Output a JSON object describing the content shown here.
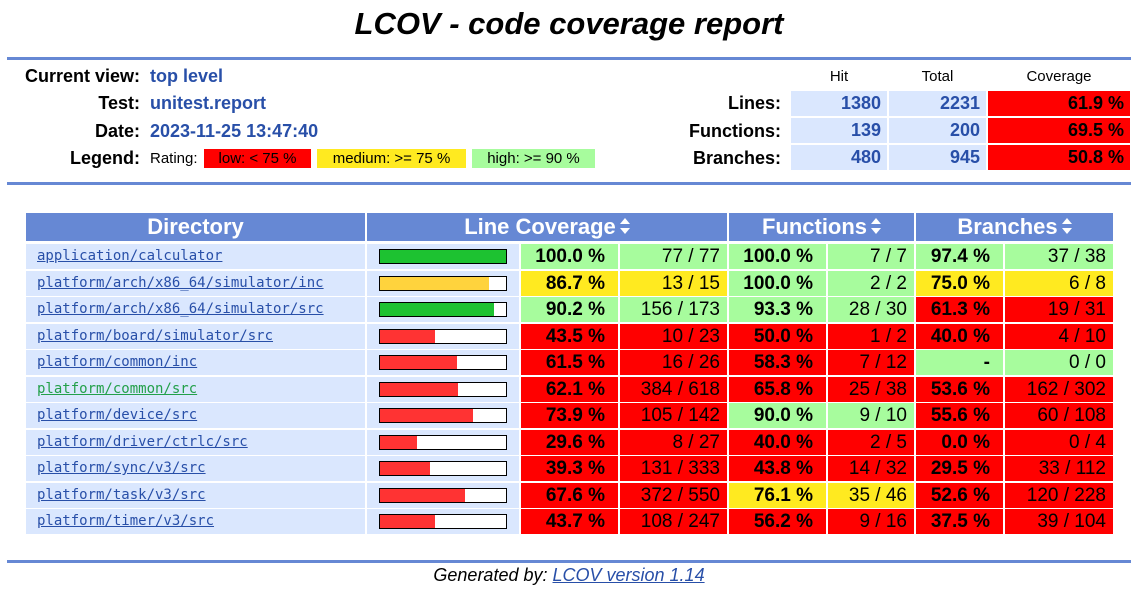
{
  "title": "LCOV - code coverage report",
  "info": {
    "current_view_label": "Current view:",
    "current_view": "top level",
    "test_label": "Test:",
    "test": "unitest.report",
    "date_label": "Date:",
    "date": "2023-11-25 13:47:40",
    "legend_label": "Legend:",
    "legend_rating": "Rating:",
    "legend_low": "low: < 75 %",
    "legend_medium": "medium: >= 75 %",
    "legend_high": "high: >= 90 %"
  },
  "summary": {
    "col_hit": "Hit",
    "col_total": "Total",
    "col_coverage": "Coverage",
    "rows": [
      {
        "label": "Lines:",
        "hit": "1380",
        "total": "2231",
        "coverage": "61.9 %"
      },
      {
        "label": "Functions:",
        "hit": "139",
        "total": "200",
        "coverage": "69.5 %"
      },
      {
        "label": "Branches:",
        "hit": "480",
        "total": "945",
        "coverage": "50.8 %"
      }
    ]
  },
  "table": {
    "headers": {
      "directory": "Directory",
      "line": "Line Coverage",
      "functions": "Functions",
      "branches": "Branches"
    },
    "rows": [
      {
        "dir": "application/calculator",
        "lp": "100.0 %",
        "ln": "77 / 77",
        "fp": "100.0 %",
        "fn": "7 / 7",
        "bp": "97.4 %",
        "bn": "37 / 38",
        "lpv": 100.0,
        "lr": "hi",
        "fr": "hi",
        "br": "hi"
      },
      {
        "dir": "platform/arch/x86_64/simulator/inc",
        "lp": "86.7 %",
        "ln": "13 / 15",
        "fp": "100.0 %",
        "fn": "2 / 2",
        "bp": "75.0 %",
        "bn": "6 / 8",
        "lpv": 86.7,
        "lr": "med",
        "fr": "hi",
        "br": "med"
      },
      {
        "dir": "platform/arch/x86_64/simulator/src",
        "lp": "90.2 %",
        "ln": "156 / 173",
        "fp": "93.3 %",
        "fn": "28 / 30",
        "bp": "61.3 %",
        "bn": "19 / 31",
        "lpv": 90.2,
        "lr": "hi",
        "fr": "hi",
        "br": "lo"
      },
      {
        "dir": "platform/board/simulator/src",
        "lp": "43.5 %",
        "ln": "10 / 23",
        "fp": "50.0 %",
        "fn": "1 / 2",
        "bp": "40.0 %",
        "bn": "4 / 10",
        "lpv": 43.5,
        "lr": "lo",
        "fr": "lo",
        "br": "lo"
      },
      {
        "dir": "platform/common/inc",
        "lp": "61.5 %",
        "ln": "16 / 26",
        "fp": "58.3 %",
        "fn": "7 / 12",
        "bp": "-",
        "bn": "0 / 0",
        "lpv": 61.5,
        "lr": "lo",
        "fr": "lo",
        "br": "hi"
      },
      {
        "dir": "platform/common/src",
        "lp": "62.1 %",
        "ln": "384 / 618",
        "fp": "65.8 %",
        "fn": "25 / 38",
        "bp": "53.6 %",
        "bn": "162 / 302",
        "lpv": 62.1,
        "lr": "lo",
        "fr": "lo",
        "br": "lo",
        "visited": true
      },
      {
        "dir": "platform/device/src",
        "lp": "73.9 %",
        "ln": "105 / 142",
        "fp": "90.0 %",
        "fn": "9 / 10",
        "bp": "55.6 %",
        "bn": "60 / 108",
        "lpv": 73.9,
        "lr": "lo",
        "fr": "hi",
        "br": "lo"
      },
      {
        "dir": "platform/driver/ctrlc/src",
        "lp": "29.6 %",
        "ln": "8 / 27",
        "fp": "40.0 %",
        "fn": "2 / 5",
        "bp": "0.0 %",
        "bn": "0 / 4",
        "lpv": 29.6,
        "lr": "lo",
        "fr": "lo",
        "br": "lo"
      },
      {
        "dir": "platform/sync/v3/src",
        "lp": "39.3 %",
        "ln": "131 / 333",
        "fp": "43.8 %",
        "fn": "14 / 32",
        "bp": "29.5 %",
        "bn": "33 / 112",
        "lpv": 39.3,
        "lr": "lo",
        "fr": "lo",
        "br": "lo"
      },
      {
        "dir": "platform/task/v3/src",
        "lp": "67.6 %",
        "ln": "372 / 550",
        "fp": "76.1 %",
        "fn": "35 / 46",
        "bp": "52.6 %",
        "bn": "120 / 228",
        "lpv": 67.6,
        "lr": "lo",
        "fr": "med",
        "br": "lo"
      },
      {
        "dir": "platform/timer/v3/src",
        "lp": "43.7 %",
        "ln": "108 / 247",
        "fp": "56.2 %",
        "fn": "9 / 16",
        "bp": "37.5 %",
        "bn": "39 / 104",
        "lpv": 43.7,
        "lr": "lo",
        "fr": "lo",
        "br": "lo"
      }
    ]
  },
  "colors": {
    "high": "#a7fc9d",
    "medium": "#ffea20",
    "low": "#ff0000",
    "bar_high": "#1dc231",
    "bar_medium": "#ffd33d",
    "bar_low": "#ff3333",
    "header": "#6688d4",
    "cell": "#dae7fe"
  },
  "footer": {
    "prefix": "Generated by:",
    "link": "LCOV version 1.14"
  }
}
